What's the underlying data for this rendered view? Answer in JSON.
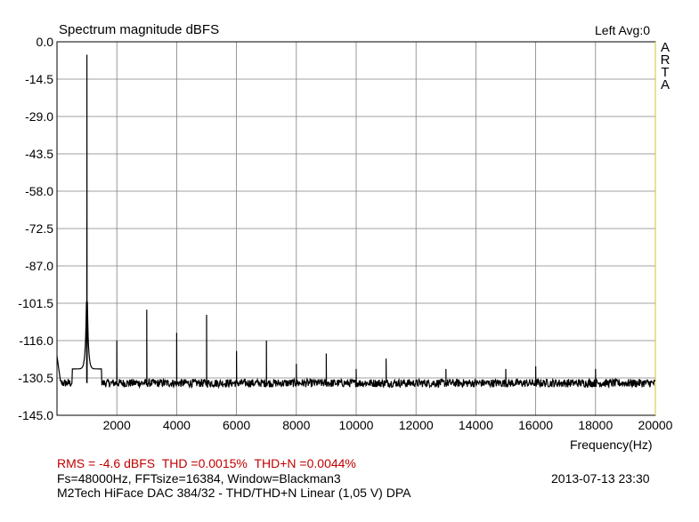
{
  "title": "Spectrum magnitude dBFS",
  "channel_label": "Left  Avg:0",
  "brand_letters": [
    "A",
    "R",
    "T",
    "A"
  ],
  "footer": {
    "stats": [
      "RMS =   -4.6 dBFS",
      "THD =0.0015%",
      "THD+N =0.0044%"
    ],
    "params": "Fs=48000Hz, FFTsize=16384, Window=Blackman3",
    "timestamp": "2013-07-13  23:30",
    "device": "M2Tech HiFace DAC 384/32 - THD/THD+N Linear (1,05 V)     DPA"
  },
  "colors": {
    "trace": "#000000",
    "grid": "#808080",
    "stats_text": "#c00000",
    "plot_border_right": "#c8c832"
  },
  "chart_data": {
    "type": "line",
    "title": "Spectrum magnitude dBFS",
    "xlabel": "Frequency(Hz)",
    "ylabel": "",
    "xlim": [
      0,
      20000
    ],
    "ylim": [
      -145,
      0
    ],
    "grid": true,
    "x_ticks": [
      2000,
      4000,
      6000,
      8000,
      10000,
      12000,
      14000,
      16000,
      18000,
      20000
    ],
    "x_tick_labels": [
      "2000",
      "4000",
      "6000",
      "8000",
      "10000",
      "12000",
      "14000",
      "16000",
      "18000",
      "20000"
    ],
    "y_ticks": [
      0,
      -14.5,
      -29,
      -43.5,
      -58,
      -72.5,
      -87,
      -101.5,
      -116,
      -130.5,
      -145
    ],
    "y_tick_labels": [
      "0.0",
      "-14.5",
      "-29.0",
      "-43.5",
      "-58.0",
      "-72.5",
      "-87.0",
      "-101.5",
      "-116.0",
      "-130.5",
      "-145.0"
    ],
    "noise_floor_db": -132.5,
    "fundamental": {
      "x": 1000,
      "y": -5
    },
    "harmonics": [
      {
        "x": 2000,
        "y": -116
      },
      {
        "x": 3000,
        "y": -104
      },
      {
        "x": 4000,
        "y": -113
      },
      {
        "x": 5000,
        "y": -106
      },
      {
        "x": 6000,
        "y": -120
      },
      {
        "x": 7000,
        "y": -116
      },
      {
        "x": 8000,
        "y": -125
      },
      {
        "x": 9000,
        "y": -121
      },
      {
        "x": 10000,
        "y": -127
      },
      {
        "x": 11000,
        "y": -123
      },
      {
        "x": 13000,
        "y": -127
      },
      {
        "x": 15000,
        "y": -127
      },
      {
        "x": 16000,
        "y": -126
      },
      {
        "x": 18000,
        "y": -127
      }
    ]
  }
}
